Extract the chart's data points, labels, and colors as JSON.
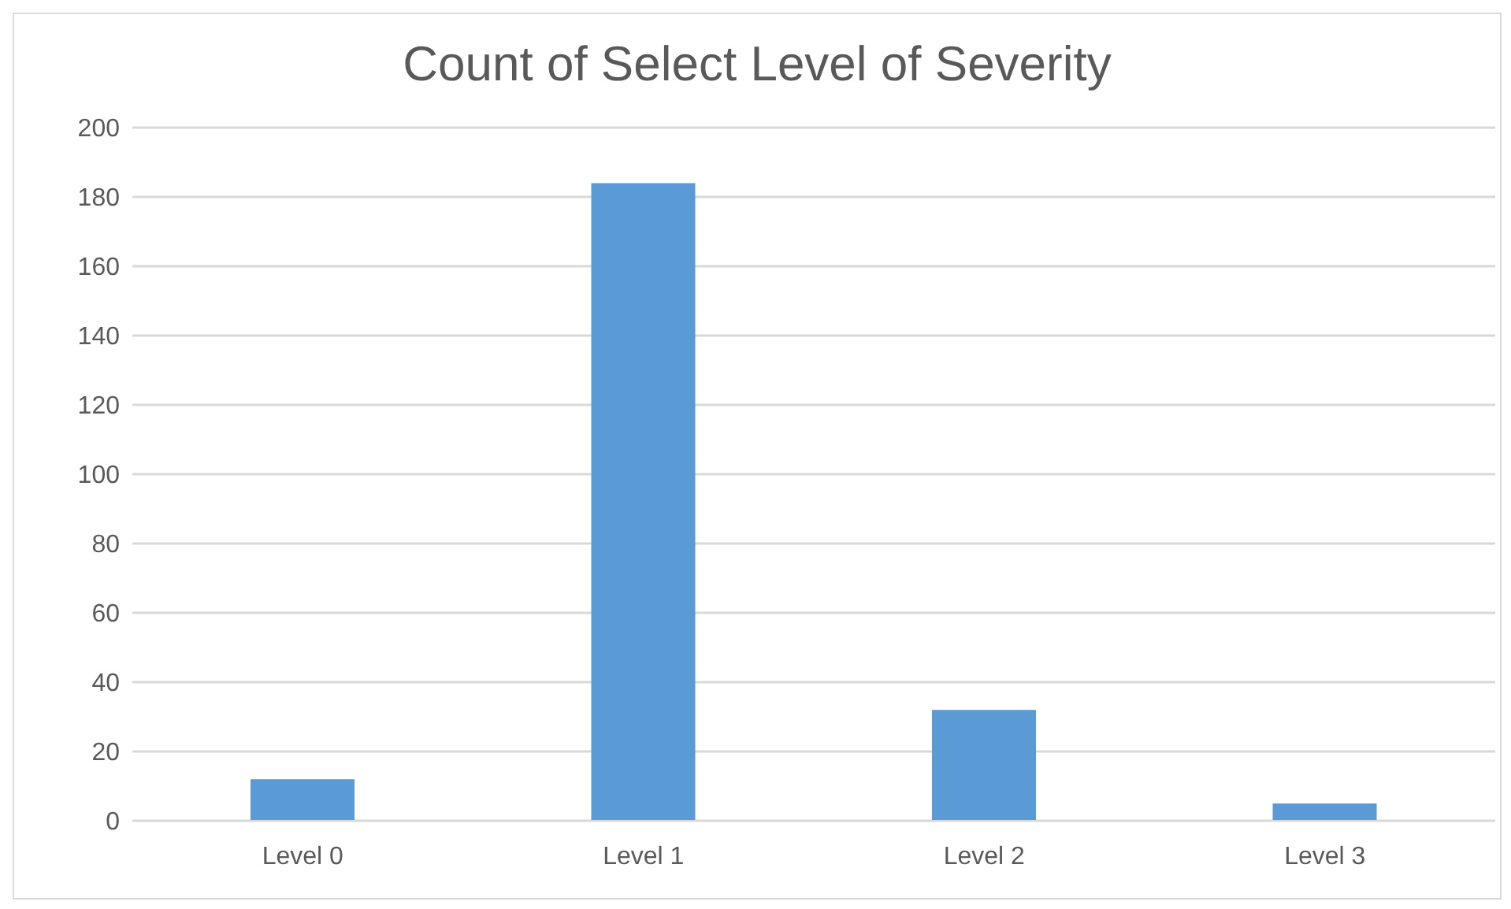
{
  "chart_data": {
    "type": "bar",
    "title": "Count of Select Level of Severity",
    "categories": [
      "Level 0",
      "Level 1",
      "Level 2",
      "Level 3"
    ],
    "values": [
      12,
      184,
      32,
      5
    ],
    "color": "#5b9bd5",
    "ylim": [
      0,
      200
    ],
    "yticks": [
      0,
      20,
      40,
      60,
      80,
      100,
      120,
      140,
      160,
      180,
      200
    ],
    "grid": "y"
  }
}
